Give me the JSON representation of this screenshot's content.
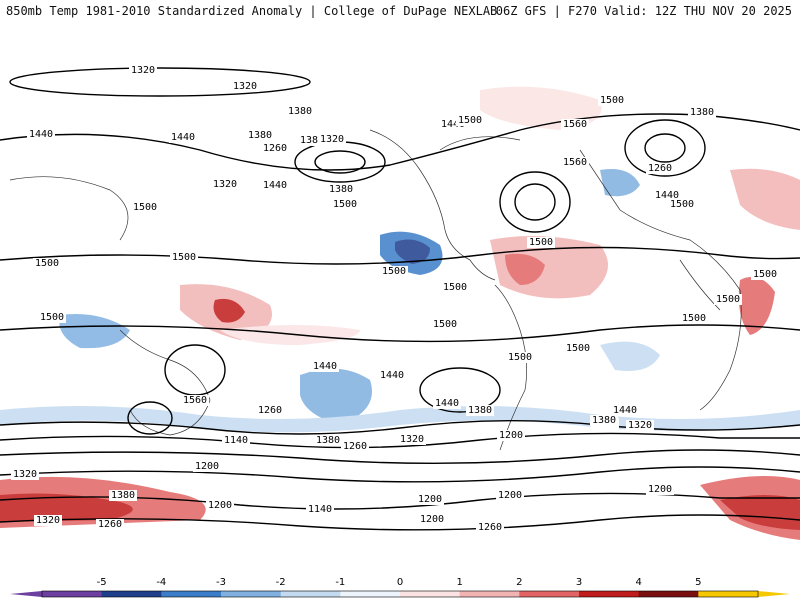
{
  "header": {
    "left_title": "850mb Temp 1981-2010 Standardized Anomaly | College of DuPage NEXLAB",
    "right_title": "06Z GFS | F270 Valid: 12Z THU NOV 20 2025"
  },
  "contour_labels": [
    "1320",
    "1320",
    "1380",
    "1440",
    "1380",
    "1440",
    "1380",
    "1260",
    "1320",
    "1320",
    "1440",
    "1380",
    "1500",
    "1500",
    "1440",
    "1500",
    "1500",
    "1560",
    "1380",
    "1260",
    "1560",
    "1440",
    "1500",
    "1500",
    "1500",
    "1500",
    "1500",
    "1500",
    "1500",
    "1500",
    "1500",
    "1500",
    "1500",
    "1500",
    "1500",
    "1440",
    "1440",
    "1560",
    "1440",
    "1380",
    "1440",
    "1260",
    "1320",
    "1500",
    "1380",
    "1140",
    "1380",
    "1260",
    "1320",
    "1200",
    "1200",
    "1320",
    "1380",
    "1260",
    "1200",
    "1140",
    "1200",
    "1200",
    "1200",
    "1260",
    "1200",
    "1320"
  ],
  "colorbar": {
    "ticks": [
      "-5",
      "-4",
      "-3",
      "-2",
      "-1",
      "0",
      "1",
      "2",
      "3",
      "4",
      "5"
    ],
    "colors": [
      "#6c3fa0",
      "#1f3f8c",
      "#3b7dc8",
      "#7fb0e0",
      "#c4daf1",
      "#eef4fb",
      "#fbe3e3",
      "#f2b3b3",
      "#e26464",
      "#c11c1c",
      "#7a0f0f",
      "#f5c800"
    ]
  }
}
